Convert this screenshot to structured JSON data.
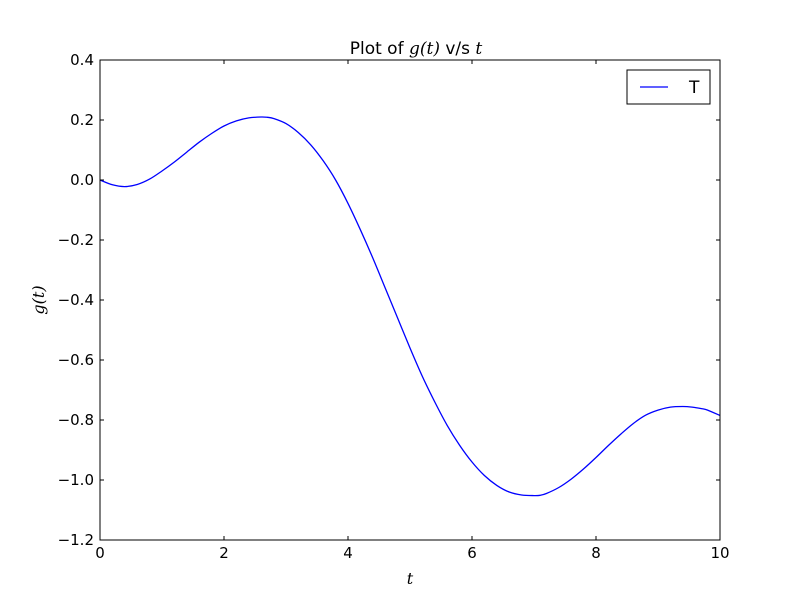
{
  "chart_data": {
    "type": "line",
    "title": {
      "prefix": "Plot of ",
      "math1": "g(t)",
      "middle": " v/s ",
      "math2": "t"
    },
    "xlabel": "t",
    "ylabel": "g(t)",
    "xlim": [
      0,
      10
    ],
    "ylim": [
      -1.2,
      0.4
    ],
    "xticks": [
      0,
      2,
      4,
      6,
      8,
      10
    ],
    "xtick_labels": [
      "0",
      "2",
      "4",
      "6",
      "8",
      "10"
    ],
    "yticks": [
      -1.2,
      -1.0,
      -0.8,
      -0.6,
      -0.4,
      -0.2,
      0.0,
      0.2,
      0.4
    ],
    "ytick_labels": [
      "−1.2",
      "−1.0",
      "−0.8",
      "−0.6",
      "−0.4",
      "−0.2",
      "0.0",
      "0.2",
      "0.4"
    ],
    "grid": false,
    "legend": {
      "position": "top-right",
      "entries": [
        "T"
      ]
    },
    "series": [
      {
        "name": "T",
        "color": "#0000ff",
        "x": [
          0,
          0.2,
          0.4,
          0.6,
          0.8,
          1.0,
          1.2,
          1.4,
          1.6,
          1.8,
          2.0,
          2.2,
          2.4,
          2.6,
          2.7,
          2.8,
          3.0,
          3.2,
          3.4,
          3.6,
          3.8,
          4.0,
          4.2,
          4.4,
          4.6,
          4.8,
          5.0,
          5.2,
          5.4,
          5.6,
          5.8,
          6.0,
          6.2,
          6.4,
          6.6,
          6.8,
          7.0,
          7.1,
          7.2,
          7.4,
          7.6,
          7.8,
          8.0,
          8.2,
          8.4,
          8.6,
          8.8,
          9.0,
          9.2,
          9.4,
          9.55,
          9.7,
          9.8,
          10.0
        ],
        "y": [
          0.0,
          -0.016,
          -0.022,
          -0.015,
          0.003,
          0.03,
          0.06,
          0.093,
          0.126,
          0.155,
          0.18,
          0.197,
          0.207,
          0.21,
          0.209,
          0.205,
          0.188,
          0.158,
          0.117,
          0.064,
          0.0,
          -0.078,
          -0.166,
          -0.26,
          -0.36,
          -0.46,
          -0.56,
          -0.655,
          -0.74,
          -0.818,
          -0.884,
          -0.94,
          -0.985,
          -1.018,
          -1.04,
          -1.05,
          -1.052,
          -1.051,
          -1.045,
          -1.025,
          -0.997,
          -0.963,
          -0.925,
          -0.885,
          -0.847,
          -0.812,
          -0.784,
          -0.767,
          -0.757,
          -0.755,
          -0.757,
          -0.762,
          -0.767,
          -0.785
        ]
      }
    ]
  }
}
